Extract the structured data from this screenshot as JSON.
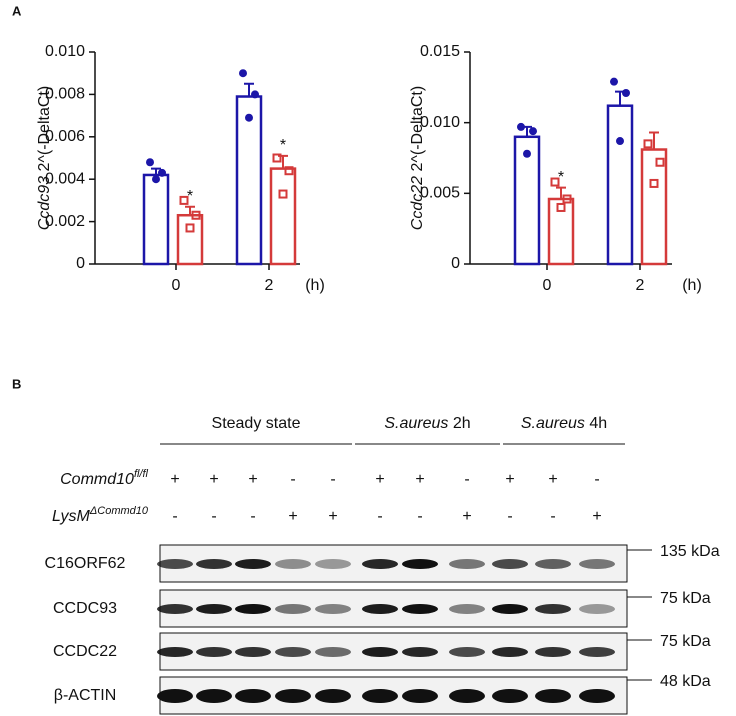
{
  "panel_labels": [
    "A",
    "B"
  ],
  "chart_data": [
    {
      "type": "bar",
      "ylabel_gene": "Ccdc93",
      "ylabel": "2^(-DeltaCt)",
      "xlabel": "(h)",
      "categories": [
        "0",
        "2"
      ],
      "ylim": [
        0,
        0.01
      ],
      "yticks": [
        0,
        0.002,
        0.004,
        0.006,
        0.008,
        {
          "value": 0.01,
          "label": "0.010"
        }
      ],
      "series": [
        {
          "color": "#1c16a8",
          "marker": "circle",
          "values": [
            0.0042,
            0.0079
          ],
          "errors": [
            0.0003,
            0.0006
          ],
          "points": [
            [
              0.0048,
              0.0043,
              0.004
            ],
            [
              0.009,
              0.008,
              0.0069
            ]
          ]
        },
        {
          "color": "#d43a3a",
          "marker": "square",
          "values": [
            0.0023,
            0.0045
          ],
          "errors": [
            0.0004,
            0.0006
          ],
          "points": [
            [
              0.003,
              0.0023,
              0.0017
            ],
            [
              0.005,
              0.0044,
              0.0033
            ]
          ],
          "annotations": [
            "*",
            "*"
          ]
        }
      ]
    },
    {
      "type": "bar",
      "ylabel_gene": "Ccdc22",
      "ylabel": "2^(-DeltaCt)",
      "xlabel": "(h)",
      "categories": [
        "0",
        "2"
      ],
      "ylim": [
        0,
        0.015
      ],
      "yticks": [
        0,
        0.005,
        {
          "value": 0.01,
          "label": "0.010"
        },
        0.015
      ],
      "series": [
        {
          "color": "#1c16a8",
          "marker": "circle",
          "values": [
            0.009,
            0.0112
          ],
          "errors": [
            0.0007,
            0.001
          ],
          "points": [
            [
              0.0097,
              0.0094,
              0.0078
            ],
            [
              0.0129,
              0.0121,
              0.0087
            ]
          ]
        },
        {
          "color": "#d43a3a",
          "marker": "square",
          "values": [
            0.0046,
            0.0081
          ],
          "errors": [
            0.0008,
            0.0012
          ],
          "points": [
            [
              0.0058,
              0.0046,
              0.004
            ],
            [
              0.0085,
              0.0072,
              0.0057
            ]
          ],
          "annotations": [
            "*",
            null
          ]
        }
      ]
    }
  ],
  "blot": {
    "groups": [
      {
        "italic": null,
        "label": "Steady state"
      },
      {
        "italic": "S.aureus",
        "label": "2h"
      },
      {
        "italic": "S.aureus",
        "label": "4h"
      }
    ],
    "rows": [
      {
        "gene": "Commd10",
        "superscript": "fl/fl",
        "signs": [
          "+",
          "+",
          "+",
          "-",
          "-",
          "+",
          "+",
          "-",
          "+",
          "+",
          "-"
        ]
      },
      {
        "gene": "LysM",
        "superscript": "ΔCommd10",
        "signs": [
          "-",
          "-",
          "-",
          "+",
          "+",
          "-",
          "-",
          "+",
          "-",
          "-",
          "+"
        ]
      }
    ],
    "bands": [
      {
        "label": "C16ORF62",
        "marker": "135 kDa"
      },
      {
        "label": "CCDC93",
        "marker": "75 kDa"
      },
      {
        "label": "CCDC22",
        "marker": "75 kDa"
      },
      {
        "label": "β-ACTIN",
        "marker": "48 kDa"
      }
    ]
  }
}
